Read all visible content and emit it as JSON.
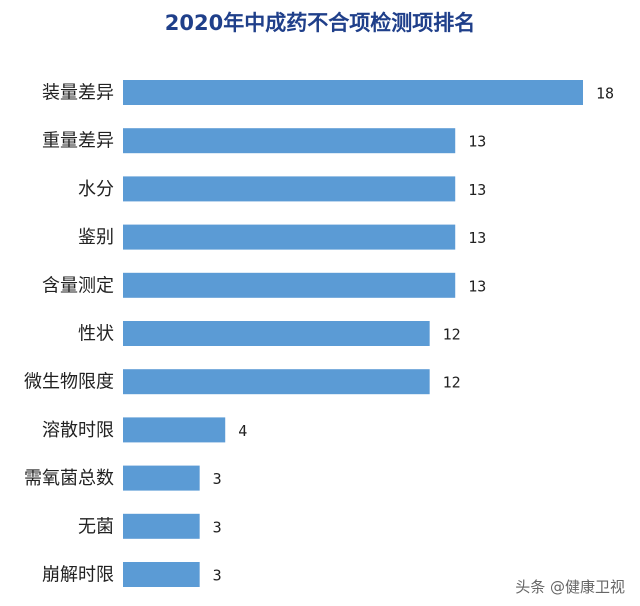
{
  "chart_data": {
    "type": "bar",
    "orientation": "horizontal",
    "title": "2020年中成药不合项检测项排名",
    "categories": [
      "装量差异",
      "重量差异",
      "水分",
      "鉴别",
      "含量测定",
      "性状",
      "微生物限度",
      "溶散时限",
      "需氧菌总数",
      "无菌",
      "崩解时限"
    ],
    "values": [
      18,
      13,
      13,
      13,
      13,
      12,
      12,
      4,
      3,
      3,
      3
    ],
    "xlim": [
      0,
      18
    ],
    "grid": false,
    "legend": "none",
    "xlabel": "",
    "ylabel": ""
  },
  "colors": {
    "bar": "#5b9bd5",
    "title": "#1f3f8a",
    "text": "#222222",
    "watermark": "#666666"
  },
  "watermark": {
    "text": "头条 @健康卫视"
  }
}
